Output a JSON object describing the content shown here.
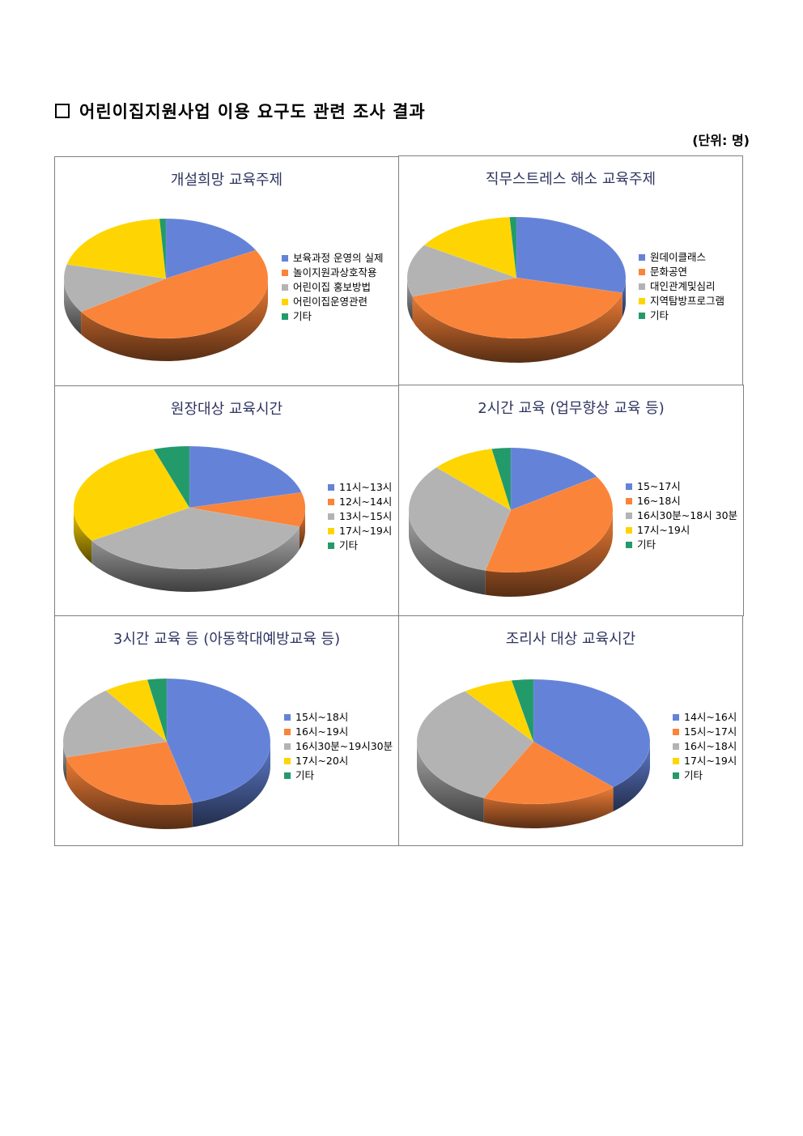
{
  "page": {
    "heading": "어린이집지원사업 이용 요구도 관련 조사 결과",
    "unit": "(단위: 명)"
  },
  "colors": {
    "blue": "#6483d8",
    "orange": "#fa8439",
    "gray": "#b3b3b3",
    "yellow": "#fed502",
    "green": "#239a6a"
  },
  "chart_data": [
    {
      "type": "pie",
      "title": "개설희망 교육주제",
      "categories": [
        "보육과정 운영의 실제",
        "놀이지원과상호작용",
        "어린이집 홍보방법",
        "어린이집운영관련",
        "기타"
      ],
      "values": [
        17,
        48,
        13,
        20,
        1
      ],
      "legend_position": "right"
    },
    {
      "type": "pie",
      "title": "직무스트레스 해소 교육주제",
      "categories": [
        "원데이클래스",
        "문화공연",
        "대인관계및심리",
        "지역탐방프로그램",
        "기타"
      ],
      "values": [
        29,
        41,
        14,
        15,
        1
      ],
      "legend_position": "right"
    },
    {
      "type": "pie",
      "title": "원장대상 교육시간",
      "categories": [
        "11시~13시",
        "12시~14시",
        "13시~15시",
        "17시~19시",
        "기타"
      ],
      "values": [
        21,
        9,
        36,
        29,
        5
      ],
      "legend_position": "right"
    },
    {
      "type": "pie",
      "title": "2시간 교육 (업무향상 교육 등)",
      "categories": [
        "15~17시",
        "16~18시",
        "16시30분~18시 30분",
        "17시~19시",
        "기타"
      ],
      "values": [
        16,
        38,
        33,
        10,
        3
      ],
      "legend_position": "right"
    },
    {
      "type": "pie",
      "title": "3시간 교육 등 (아동학대예방교육 등)",
      "categories": [
        "15시~18시",
        "16시~19시",
        "16시30분~19시30분",
        "17시~20시",
        "기타"
      ],
      "values": [
        46,
        25,
        19,
        7,
        3
      ],
      "legend_position": "right"
    },
    {
      "type": "pie",
      "title": "조리사 대상 교육시간",
      "categories": [
        "14시~16시",
        "15시~17시",
        "16시~18시",
        "17시~19시",
        "기타"
      ],
      "values": [
        38,
        19,
        33,
        7,
        3
      ],
      "legend_position": "right"
    }
  ]
}
